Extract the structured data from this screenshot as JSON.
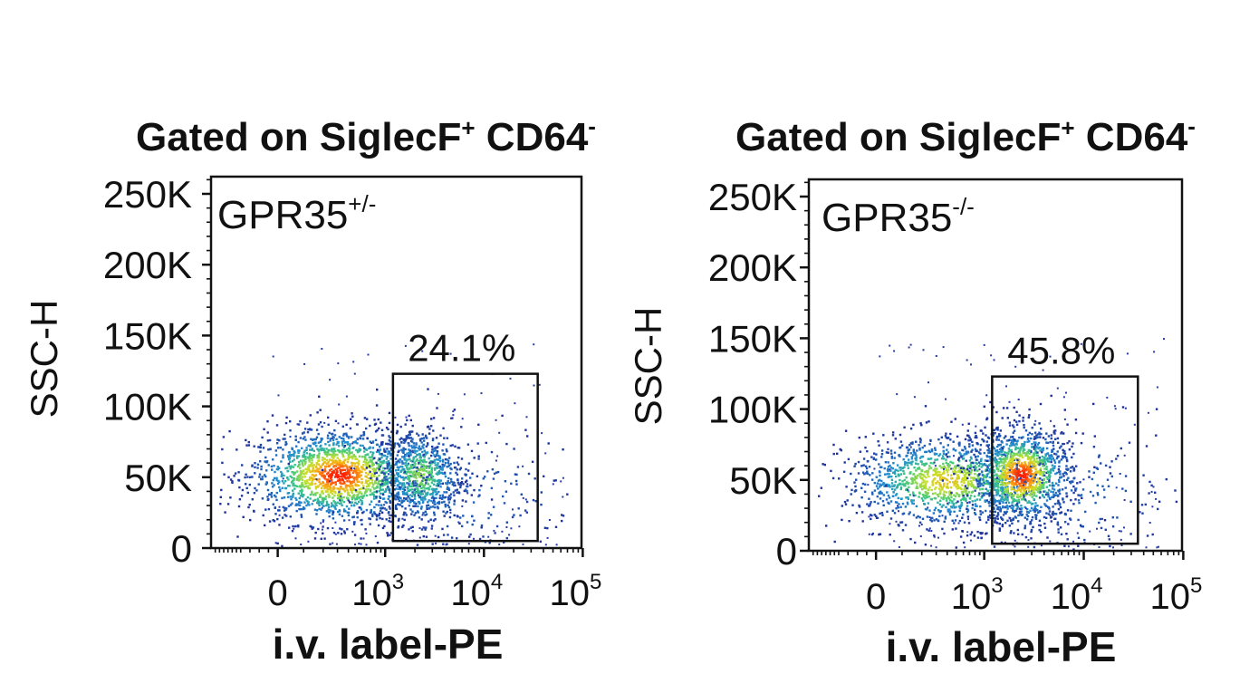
{
  "chart_data": [
    {
      "type": "scatter",
      "subtype": "flow-cytometry-pseudocolor-density",
      "title": "Gated on SiglecF",
      "title_parts": {
        "main": "Gated on SiglecF",
        "sup1": "+",
        "mid": " CD64",
        "sup2": "-"
      },
      "sample": "GPR35",
      "sample_sup": "+/-",
      "xlabel": "i.v. label-PE",
      "ylabel": "SSC-H",
      "x_scale": "biexponential",
      "x_ticks": [
        {
          "label": "0",
          "sup": ""
        },
        {
          "label": "10",
          "sup": "3"
        },
        {
          "label": "10",
          "sup": "4"
        },
        {
          "label": "10",
          "sup": "5"
        }
      ],
      "y_ticks": [
        "0",
        "50K",
        "100K",
        "150K",
        "200K",
        "250K"
      ],
      "ylim": [
        0,
        262144
      ],
      "gate": {
        "label": "24.1%",
        "x_range": [
          1200,
          35000
        ],
        "y_range": [
          5000,
          123000
        ]
      },
      "populations": [
        {
          "name": "",
          "x_center": 300,
          "y_center": 52000,
          "x_spread_decades": 0.45,
          "y_spread": 17000,
          "relative_size": 0.66,
          "peak_color": "#ff2000"
        },
        {
          "name": "",
          "x_center": 2200,
          "y_center": 52000,
          "x_spread_decades": 0.22,
          "y_spread": 17000,
          "relative_size": 0.26,
          "peak_color": "#7ed24a"
        },
        {
          "name": "",
          "x_center": 6000,
          "y_center": 38000,
          "x_spread_decades": 0.6,
          "y_spread": 25000,
          "relative_size": 0.08,
          "peak_color": "#2f4ab8"
        }
      ],
      "colors": {
        "low": "#1f2f9a",
        "mid": "#21c1e0",
        "high": "#f2e21e",
        "peak": "#ff1a00"
      }
    },
    {
      "type": "scatter",
      "subtype": "flow-cytometry-pseudocolor-density",
      "title": "Gated on SiglecF",
      "title_parts": {
        "main": "Gated on SiglecF",
        "sup1": "+",
        "mid": " CD64",
        "sup2": "-"
      },
      "sample": "GPR35",
      "sample_sup": "-/-",
      "xlabel": "i.v. label-PE",
      "ylabel": "SSC-H",
      "x_scale": "biexponential",
      "x_ticks": [
        {
          "label": "0",
          "sup": ""
        },
        {
          "label": "10",
          "sup": "3"
        },
        {
          "label": "10",
          "sup": "4"
        },
        {
          "label": "10",
          "sup": "5"
        }
      ],
      "y_ticks": [
        "0",
        "50K",
        "100K",
        "150K",
        "200K",
        "250K"
      ],
      "ylim": [
        0,
        262144
      ],
      "gate": {
        "label": "45.8%",
        "x_range": [
          1200,
          35000
        ],
        "y_range": [
          5000,
          123000
        ]
      },
      "populations": [
        {
          "name": "",
          "x_center": 380,
          "y_center": 50000,
          "x_spread_decades": 0.5,
          "y_spread": 16000,
          "relative_size": 0.48,
          "peak_color": "#d9e21e"
        },
        {
          "name": "",
          "x_center": 2300,
          "y_center": 54000,
          "x_spread_decades": 0.25,
          "y_spread": 17000,
          "relative_size": 0.44,
          "peak_color": "#ff2a00"
        },
        {
          "name": "",
          "x_center": 7000,
          "y_center": 40000,
          "x_spread_decades": 0.6,
          "y_spread": 25000,
          "relative_size": 0.08,
          "peak_color": "#2f4ab8"
        }
      ],
      "colors": {
        "low": "#1f2f9a",
        "mid": "#21c1e0",
        "high": "#f2e21e",
        "peak": "#ff1a00"
      }
    }
  ]
}
